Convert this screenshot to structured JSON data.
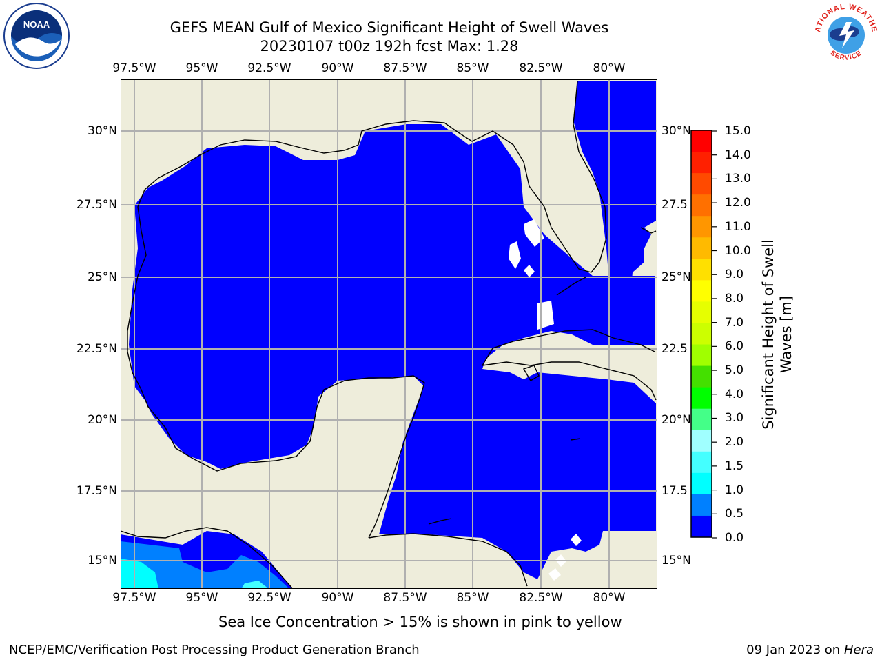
{
  "title_line1": "GEFS MEAN Gulf of Mexico Significant Height of Swell Waves",
  "title_line2": "20230107 t00z 192h fcst   Max: 1.28",
  "lon_labels": [
    "97.5°W",
    "95°W",
    "92.5°W",
    "90°W",
    "87.5°W",
    "85°W",
    "82.5°W",
    "80°W"
  ],
  "lat_labels_left": [
    "30°N",
    "27.5°N",
    "25°N",
    "22.5°N",
    "20°N",
    "17.5°N",
    "15°N"
  ],
  "lat_labels_right": [
    "30°N",
    "27.5",
    "25°N",
    "22.5",
    "20°N",
    "17.5",
    "15°N"
  ],
  "colorbar": {
    "ticks": [
      "15.0",
      "14.0",
      "13.0",
      "12.0",
      "11.0",
      "10.0",
      "9.0",
      "8.0",
      "7.0",
      "6.0",
      "5.0",
      "4.0",
      "3.0",
      "2.0",
      "1.5",
      "1.0",
      "0.5",
      "0.0"
    ],
    "label_line1": "Significant Height of Swell",
    "label_line2": "Waves [m]",
    "colors": [
      "#ff0000",
      "#ff2000",
      "#ff4a00",
      "#ff7000",
      "#ff9600",
      "#ffba00",
      "#ffe000",
      "#ffff00",
      "#e6ff00",
      "#ccff00",
      "#a0ff00",
      "#44e000",
      "#00ff00",
      "#44ff88",
      "#a0ffff",
      "#44ffff",
      "#00ffff",
      "#0080ff",
      "#0000ff"
    ]
  },
  "subtitle": "Sea Ice Concentration > 15% is shown in pink to yellow",
  "footer_left": "NCEP/EMC/Verification Post Processing Product Generation Branch",
  "footer_right_date": "09 Jan 2023 on ",
  "footer_right_host": "Hera",
  "logos": {
    "left": "NOAA",
    "right_top": "NATIONAL WEATHER",
    "right_bottom": "SERVICE"
  },
  "colors": {
    "ocean": "#0000ff",
    "land": "#eeeddb",
    "grid": "#b0b0b0",
    "no_data": "#ffffff"
  }
}
